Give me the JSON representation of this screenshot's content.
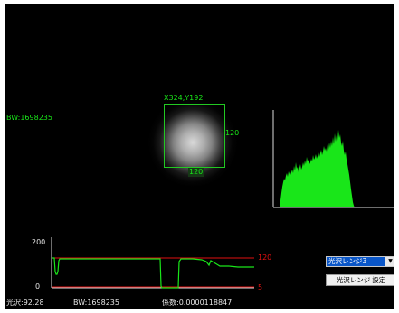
{
  "viewer": {
    "bw_left": "BW:1698235",
    "roi": {
      "coord_label": "X324,Y192",
      "width_label": "120",
      "height_label": "120"
    }
  },
  "trend": {
    "y_max_label": "200",
    "y_min_label": "0",
    "upper_limit_label": "120",
    "lower_limit_label": "5"
  },
  "controls": {
    "range_select_value": "光沢レンジ3",
    "set_button_label": "光沢レンジ 設定"
  },
  "status": {
    "gloss": "光沢:92.28",
    "bw": "BW:1698235",
    "coefficient": "係数:0.0000118847"
  },
  "colors": {
    "accent_green": "#19e619",
    "limit_red": "#e01010",
    "select_blue": "#0a56c8"
  },
  "icons": {
    "dropdown": "chevron-down-icon"
  }
}
